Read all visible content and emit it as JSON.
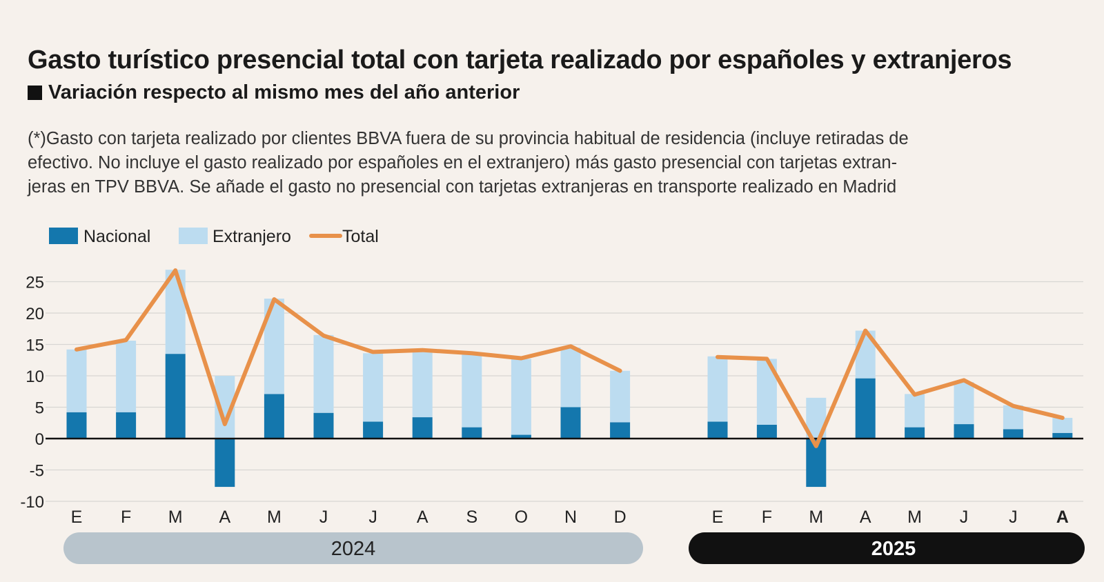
{
  "title": "Gasto turístico presencial total con tarjeta realizado por españoles y extranjeros",
  "subtitle": "Variación respecto al mismo mes del año anterior",
  "note_lines": [
    "(*)Gasto con tarjeta realizado por clientes BBVA fuera de su provincia habitual de residencia (incluye retiradas de",
    "efectivo. No incluye el gasto realizado por españoles en el extranjero) más gasto presencial con tarjetas extran-",
    "jeras en TPV BBVA. Se añade el gasto no presencial con tarjetas extranjeras en transporte realizado en Madrid"
  ],
  "colors": {
    "nacional": "#1477ad",
    "extranjero": "#bcdcf0",
    "total": "#e8914a",
    "year2024_band": "#b8c4cc",
    "year2025_band": "#111111"
  },
  "chart_data": {
    "type": "bar",
    "stacked": true,
    "legend": [
      {
        "name": "Nacional",
        "kind": "bar"
      },
      {
        "name": "Extranjero",
        "kind": "bar"
      },
      {
        "name": "Total",
        "kind": "line"
      }
    ],
    "legend_position": "top-left",
    "yticks": [
      "25",
      "20",
      "15",
      "10",
      "5",
      "0",
      "-5",
      "-10"
    ],
    "ylim": [
      -10,
      27
    ],
    "grid": true,
    "groups": [
      {
        "year": "2024",
        "months": [
          "E",
          "F",
          "M",
          "A",
          "M",
          "J",
          "J",
          "A",
          "S",
          "O",
          "N",
          "D"
        ],
        "nacional": [
          4.2,
          4.2,
          13.5,
          -7.7,
          7.1,
          4.1,
          2.7,
          3.4,
          1.8,
          0.6,
          5.0,
          2.6
        ],
        "extranjero": [
          10.0,
          11.4,
          13.4,
          10.0,
          15.2,
          12.4,
          10.9,
          10.6,
          11.6,
          12.1,
          9.5,
          8.2
        ],
        "total": [
          14.2,
          15.7,
          26.8,
          2.3,
          22.2,
          16.4,
          13.8,
          14.1,
          13.6,
          12.8,
          14.7,
          10.8
        ]
      },
      {
        "year": "2025",
        "months": [
          "E",
          "F",
          "M",
          "A",
          "M",
          "J",
          "J",
          "A"
        ],
        "nacional": [
          2.7,
          2.2,
          -7.7,
          9.6,
          1.8,
          2.3,
          1.5,
          0.9
        ],
        "extranjero": [
          10.4,
          10.5,
          6.5,
          7.6,
          5.3,
          6.7,
          3.8,
          2.4
        ],
        "total": [
          13.0,
          12.7,
          -1.2,
          17.2,
          7.0,
          9.3,
          5.2,
          3.3
        ]
      }
    ]
  }
}
